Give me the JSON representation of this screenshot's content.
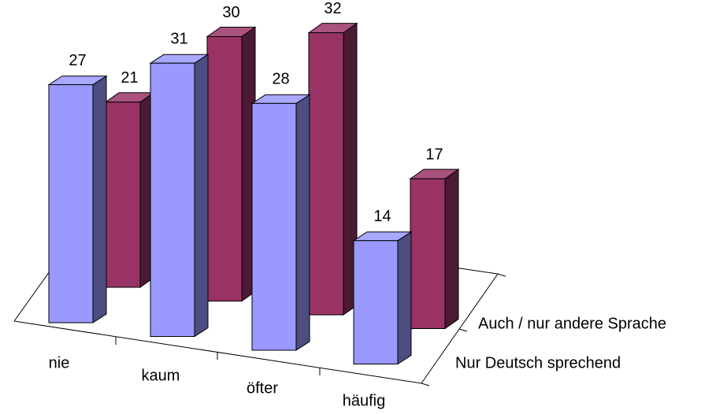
{
  "chart_data": {
    "type": "bar3d",
    "categories": [
      "nie",
      "kaum",
      "öfter",
      "häufig"
    ],
    "series": [
      {
        "name": "Nur Deutsch sprechend",
        "color": "#9999ff",
        "values": [
          27,
          31,
          28,
          14
        ]
      },
      {
        "name": "Auch / nur andere Sprache",
        "color": "#993366",
        "values": [
          21,
          30,
          32,
          17
        ]
      }
    ]
  }
}
